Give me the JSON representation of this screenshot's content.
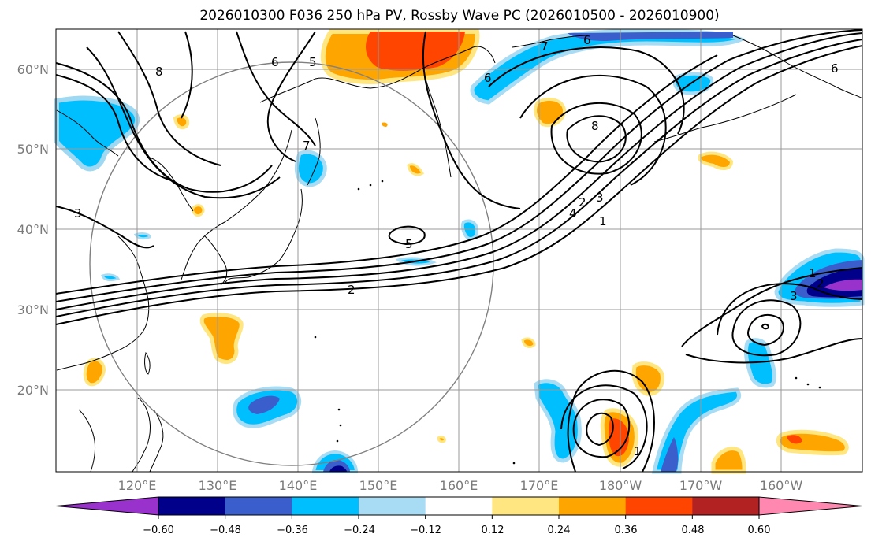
{
  "title": "2026010300 F036 250 hPa PV, Rossby Wave PC (2026010500 - 2026010900)",
  "lat_labels": [
    "60°N",
    "50°N",
    "40°N",
    "30°N",
    "20°N"
  ],
  "lon_labels": [
    "120°E",
    "130°E",
    "140°E",
    "150°E",
    "160°E",
    "170°E",
    "180°W",
    "170°W",
    "160°W"
  ],
  "colorbar": {
    "tick_labels": [
      "−0.60",
      "−0.48",
      "−0.36",
      "−0.24",
      "−0.12",
      "0.12",
      "0.24",
      "0.36",
      "0.48",
      "0.60"
    ],
    "colors": [
      "#9932cc",
      "#00008b",
      "#3a5fcd",
      "#00bfff",
      "#a8dcf5",
      "#ffffff",
      "#ffe680",
      "#ffa500",
      "#ff4500",
      "#b22222",
      "#ff88b0"
    ]
  },
  "contour_labels": {
    "l1": "8",
    "l2": "6",
    "l3": "5",
    "l4": "7",
    "l5": "3",
    "l6": "2",
    "l7": "5",
    "l8": "7",
    "l9": "6",
    "l10": "6",
    "l11": "8",
    "l12": "4",
    "l13": "2",
    "l14": "3",
    "l15": "1",
    "l16": "1",
    "l17": "2",
    "l18": "3",
    "l19": "1",
    "l20": "6"
  },
  "colors": {
    "contour": "#000000",
    "grid": "#999999",
    "circle": "#808080",
    "coast": "#000000"
  }
}
